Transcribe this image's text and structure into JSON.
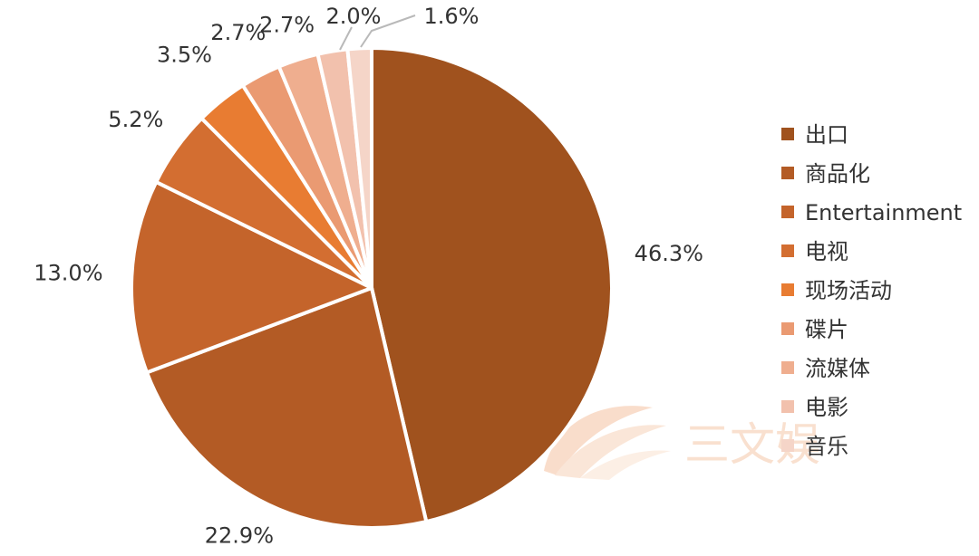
{
  "chart_data": {
    "type": "pie",
    "title": "",
    "start_angle_deg": 0,
    "direction": "clockwise",
    "slices": [
      {
        "label": "出口",
        "value": 46.3,
        "display": "46.3%",
        "color": "#a0521e"
      },
      {
        "label": "商品化",
        "value": 22.9,
        "display": "22.9%",
        "color": "#b35b25"
      },
      {
        "label": "Entertainment",
        "value": 13.0,
        "display": "13.0%",
        "color": "#c4642b"
      },
      {
        "label": "电视",
        "value": 5.2,
        "display": "5.2%",
        "color": "#d36e31"
      },
      {
        "label": "现场活动",
        "value": 3.5,
        "display": "3.5%",
        "color": "#e87c32"
      },
      {
        "label": "碟片",
        "value": 2.7,
        "display": "2.7%",
        "color": "#ea9a72"
      },
      {
        "label": "流媒体",
        "value": 2.7,
        "display": "2.7%",
        "color": "#efae8f"
      },
      {
        "label": "电影",
        "value": 2.0,
        "display": "2.0%",
        "color": "#f2c1ad"
      },
      {
        "label": "音乐",
        "value": 1.6,
        "display": "1.6%",
        "color": "#f5d5c8"
      }
    ],
    "legend_position": "right"
  },
  "watermark": {
    "text": "三文娱",
    "icon": "swoosh-logo-icon"
  }
}
